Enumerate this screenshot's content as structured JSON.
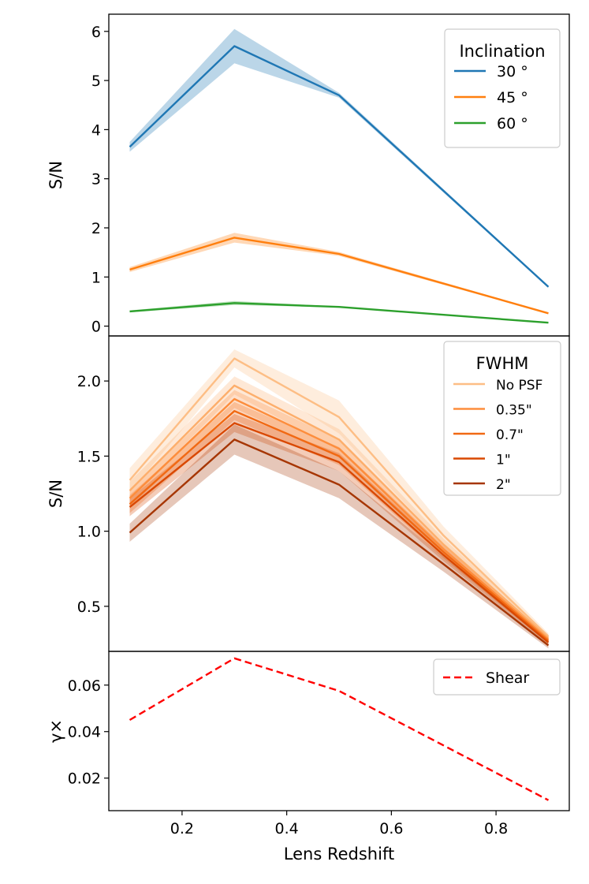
{
  "chart_data": [
    {
      "type": "line",
      "panel": "top",
      "ylabel": "S/N",
      "xlim": [
        0.06,
        0.94
      ],
      "ylim": [
        -0.2,
        6.35
      ],
      "yticks": [
        0,
        1,
        2,
        3,
        4,
        5,
        6
      ],
      "legend": {
        "title": "Inclination",
        "position": "top-right"
      },
      "x": [
        0.1,
        0.3,
        0.5,
        0.9
      ],
      "series": [
        {
          "name": "30 °",
          "color": "#1f77b4",
          "values": [
            3.65,
            5.7,
            4.7,
            0.8
          ],
          "lower": [
            3.55,
            5.35,
            4.65,
            0.78
          ],
          "upper": [
            3.75,
            6.05,
            4.75,
            0.82
          ]
        },
        {
          "name": "45 °",
          "color": "#ff7f0e",
          "values": [
            1.15,
            1.8,
            1.47,
            0.26
          ],
          "lower": [
            1.1,
            1.7,
            1.43,
            0.25
          ],
          "upper": [
            1.2,
            1.9,
            1.51,
            0.27
          ]
        },
        {
          "name": "60 °",
          "color": "#2ca02c",
          "values": [
            0.3,
            0.47,
            0.39,
            0.07
          ],
          "lower": [
            0.28,
            0.43,
            0.38,
            0.065
          ],
          "upper": [
            0.32,
            0.51,
            0.4,
            0.075
          ]
        }
      ]
    },
    {
      "type": "line",
      "panel": "middle",
      "ylabel": "S/N",
      "xlim": [
        0.06,
        0.94
      ],
      "ylim": [
        0.2,
        2.3
      ],
      "yticks": [
        0.5,
        1.0,
        1.5,
        2.0
      ],
      "ytick_labels": [
        "0.5",
        "1.0",
        "1.5",
        "2.0"
      ],
      "legend": {
        "title": "FWHM",
        "position": "top-right"
      },
      "x": [
        0.1,
        0.3,
        0.5,
        0.7,
        0.9
      ],
      "series": [
        {
          "name": "No PSF",
          "color": "#fdbe85",
          "values": [
            1.34,
            2.15,
            1.76,
            0.97,
            0.3
          ],
          "lower": [
            1.26,
            2.09,
            1.65,
            0.91,
            0.28
          ],
          "upper": [
            1.42,
            2.21,
            1.87,
            1.03,
            0.32
          ]
        },
        {
          "name": "",
          "color": "#fdae6b",
          "values": [
            1.27,
            1.97,
            1.61,
            0.91,
            0.29
          ],
          "lower": [
            1.21,
            1.91,
            1.54,
            0.87,
            0.27
          ],
          "upper": [
            1.33,
            2.03,
            1.68,
            0.95,
            0.31
          ]
        },
        {
          "name": "0.35\"",
          "color": "#fd8d3c",
          "values": [
            1.22,
            1.88,
            1.55,
            0.88,
            0.28
          ],
          "lower": [
            1.16,
            1.82,
            1.49,
            0.84,
            0.26
          ],
          "upper": [
            1.28,
            1.94,
            1.61,
            0.92,
            0.3
          ]
        },
        {
          "name": "0.7\"",
          "color": "#f16913",
          "values": [
            1.18,
            1.8,
            1.5,
            0.86,
            0.27
          ],
          "lower": [
            1.12,
            1.74,
            1.44,
            0.82,
            0.25
          ],
          "upper": [
            1.24,
            1.86,
            1.56,
            0.9,
            0.29
          ]
        },
        {
          "name": "1\"",
          "color": "#d94801",
          "values": [
            1.16,
            1.72,
            1.46,
            0.84,
            0.26
          ],
          "lower": [
            1.1,
            1.66,
            1.4,
            0.8,
            0.24
          ],
          "upper": [
            1.22,
            1.78,
            1.52,
            0.88,
            0.28
          ]
        },
        {
          "name": "2\"",
          "color": "#a63603",
          "values": [
            0.99,
            1.61,
            1.31,
            0.78,
            0.24
          ],
          "lower": [
            0.93,
            1.51,
            1.22,
            0.73,
            0.22
          ],
          "upper": [
            1.05,
            1.71,
            1.4,
            0.83,
            0.26
          ]
        }
      ]
    },
    {
      "type": "line",
      "panel": "bottom",
      "ylabel": "γ×",
      "xlabel": "Lens Redshift",
      "xlim": [
        0.06,
        0.94
      ],
      "ylim": [
        0.006,
        0.0745
      ],
      "yticks": [
        0.02,
        0.04,
        0.06
      ],
      "ytick_labels": [
        "0.02",
        "0.04",
        "0.06"
      ],
      "xticks": [
        0.2,
        0.4,
        0.6,
        0.8
      ],
      "xtick_labels": [
        "0.2",
        "0.4",
        "0.6",
        "0.8"
      ],
      "legend": {
        "title": "",
        "position": "top-right"
      },
      "x": [
        0.1,
        0.3,
        0.5,
        0.9
      ],
      "series": [
        {
          "name": "Shear",
          "color": "#ff0000",
          "dashed": true,
          "values": [
            0.045,
            0.0715,
            0.0575,
            0.0105
          ]
        }
      ]
    }
  ]
}
